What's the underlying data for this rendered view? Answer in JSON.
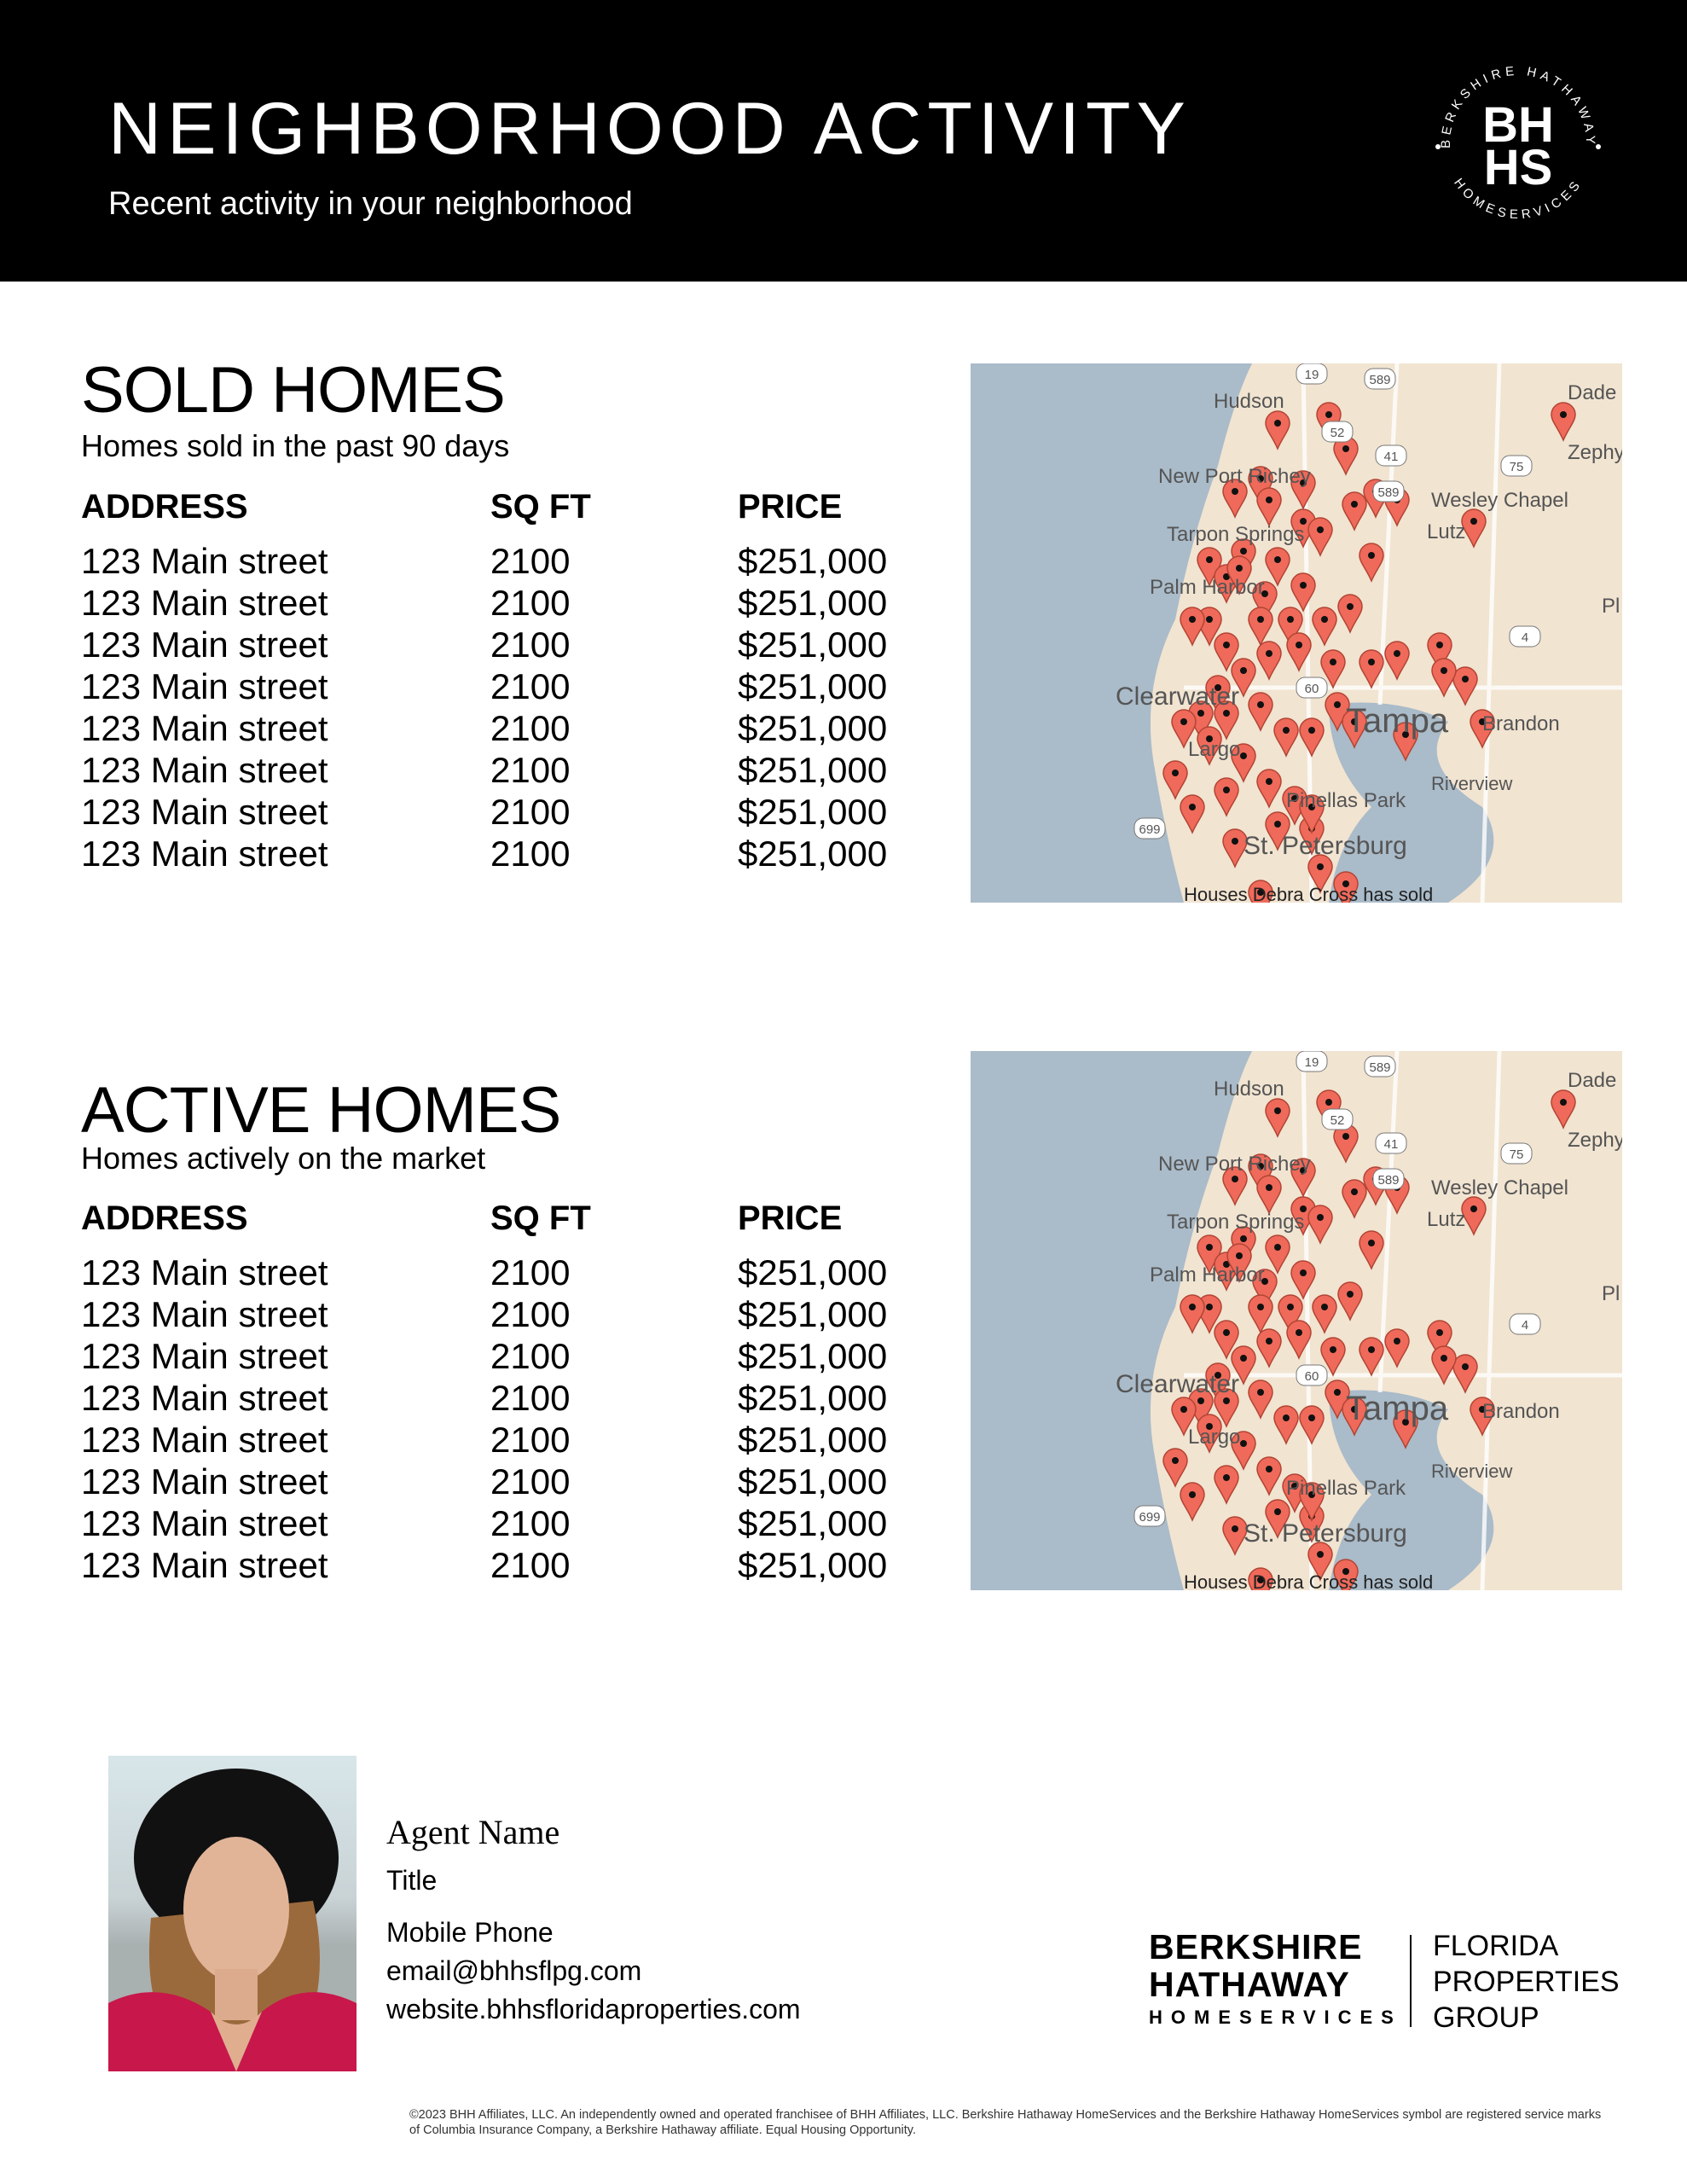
{
  "header": {
    "title": "NEIGHBORHOOD ACTIVITY",
    "subtitle": "Recent activity in your neighborhood",
    "logo": {
      "ring_top": "BERKSHIRE HATHAWAY",
      "ring_bottom": "HOMESERVICES",
      "mono1": "BH",
      "mono2": "HS"
    }
  },
  "sold": {
    "title": "SOLD HOMES",
    "subtitle": "Homes sold in the past 90 days",
    "columns": [
      "ADDRESS",
      "SQ FT",
      "PRICE"
    ],
    "rows": [
      [
        "123 Main street",
        "2100",
        "$251,000"
      ],
      [
        "123 Main street",
        "2100",
        "$251,000"
      ],
      [
        "123 Main street",
        "2100",
        "$251,000"
      ],
      [
        "123 Main street",
        "2100",
        "$251,000"
      ],
      [
        "123 Main street",
        "2100",
        "$251,000"
      ],
      [
        "123 Main street",
        "2100",
        "$251,000"
      ],
      [
        "123 Main street",
        "2100",
        "$251,000"
      ],
      [
        "123 Main street",
        "2100",
        "$251,000"
      ]
    ]
  },
  "active": {
    "title": "ACTIVE HOMES",
    "subtitle": "Homes actively on the market",
    "columns": [
      "ADDRESS",
      "SQ FT",
      "PRICE"
    ],
    "rows": [
      [
        "123 Main street",
        "2100",
        "$251,000"
      ],
      [
        "123 Main street",
        "2100",
        "$251,000"
      ],
      [
        "123 Main street",
        "2100",
        "$251,000"
      ],
      [
        "123 Main street",
        "2100",
        "$251,000"
      ],
      [
        "123 Main street",
        "2100",
        "$251,000"
      ],
      [
        "123 Main street",
        "2100",
        "$251,000"
      ],
      [
        "123 Main street",
        "2100",
        "$251,000"
      ],
      [
        "123 Main street",
        "2100",
        "$251,000"
      ]
    ]
  },
  "map": {
    "labels": [
      "Hudson",
      "Dade Ci",
      "New Port Richey",
      "Zephyrh",
      "Wesley Chapel",
      "Lutz",
      "Tarpon Springs",
      "Palm Harbor",
      "Pl",
      "Clearwater",
      "Tampa",
      "Brandon",
      "Largo",
      "Riverview",
      "Pinellas Park",
      "St. Petersburg",
      "Houses Debra Cross has sold"
    ],
    "shields": [
      "19",
      "589",
      "52",
      "41",
      "75",
      "589",
      "60",
      "4",
      "699"
    ],
    "colors": {
      "water": "#aabbc9",
      "land": "#f1e4d1",
      "pin": "#ef6a5a"
    }
  },
  "agent": {
    "name": "Agent Name",
    "title": "Title",
    "phone": "Mobile Phone",
    "email": "email@bhhsflpg.com",
    "website": "website.bhhsfloridaproperties.com"
  },
  "brand": {
    "line1": "BERKSHIRE",
    "line2": "HATHAWAY",
    "line3": "HOMESERVICES",
    "group1": "FLORIDA",
    "group2": "PROPERTIES",
    "group3": "GROUP"
  },
  "disclaimer": "©2023 BHH Affiliates, LLC. An independently owned and operated franchisee of BHH Affiliates, LLC. Berkshire Hathaway HomeServices and the Berkshire Hathaway HomeServices symbol are registered service marks of Columbia Insurance Company, a Berkshire Hathaway affiliate. Equal Housing Opportunity."
}
